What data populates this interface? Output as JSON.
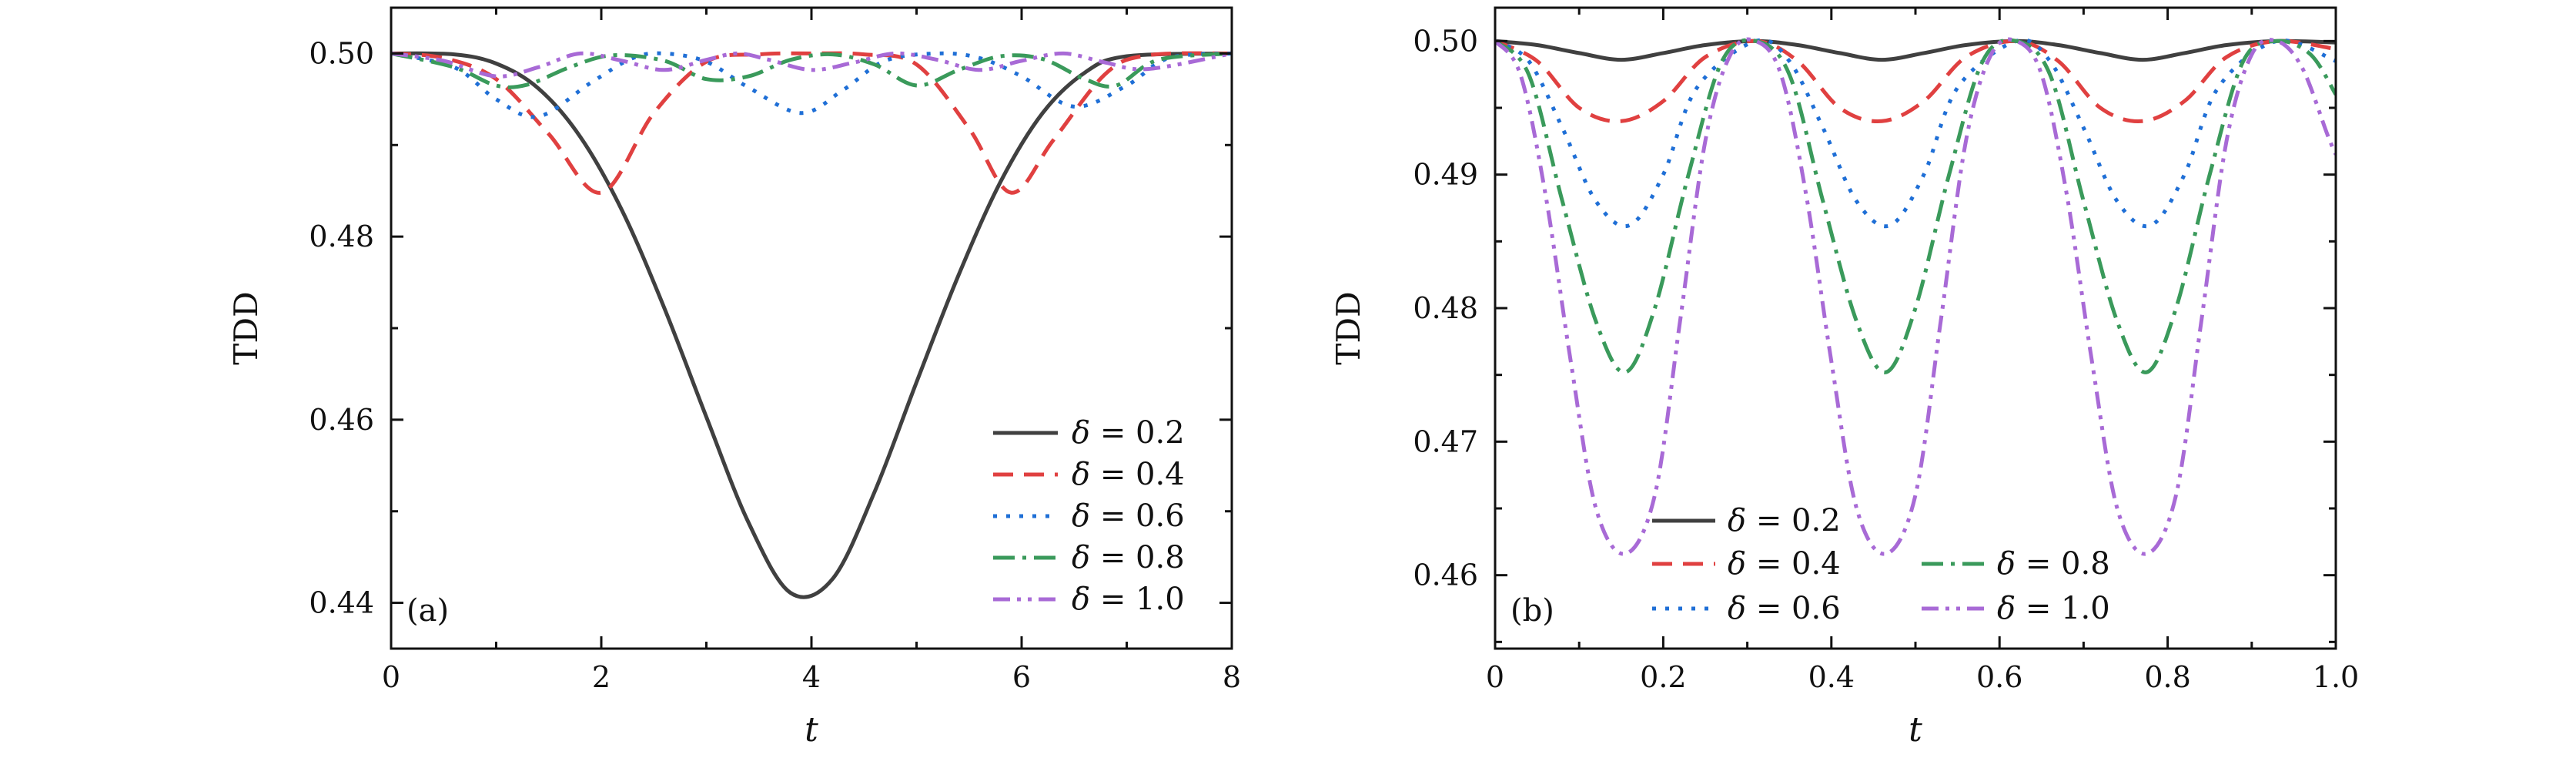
{
  "chart_data": [
    {
      "type": "line",
      "panel_label": "(a)",
      "xlabel": "t",
      "ylabel": "TDD",
      "xlim": [
        0,
        8
      ],
      "ylim": [
        0.435,
        0.505
      ],
      "x_ticks": [
        0,
        2,
        4,
        6,
        8
      ],
      "x_tick_labels": [
        "0",
        "2",
        "4",
        "6",
        "8"
      ],
      "y_ticks": [
        0.44,
        0.46,
        0.48,
        0.5
      ],
      "y_tick_labels": [
        "0.44",
        "0.46",
        "0.48",
        "0.50"
      ],
      "legend_position": "bottom-right",
      "legend_layout": "single-column",
      "series": [
        {
          "name": "δ = 0.2",
          "symbol": "δ",
          "value_text": "= 0.2",
          "color": "#404040",
          "dash": "solid",
          "x": [
            0,
            0.6,
            1.0,
            1.4,
            1.8,
            2.2,
            2.6,
            3.0,
            3.4,
            3.8,
            4.2,
            4.6,
            5.0,
            5.4,
            5.8,
            6.2,
            6.6,
            7.0,
            8.0
          ],
          "y": [
            0.5,
            0.4999,
            0.4989,
            0.4962,
            0.4909,
            0.4828,
            0.4722,
            0.4603,
            0.4488,
            0.4411,
            0.4426,
            0.4521,
            0.4641,
            0.4758,
            0.486,
            0.4935,
            0.4979,
            0.4997,
            0.5
          ]
        },
        {
          "name": "δ = 0.4",
          "symbol": "δ",
          "value_text": "= 0.4",
          "color": "#e04040",
          "dash": "long-dash",
          "x": [
            0,
            0.5,
            1.0,
            1.5,
            2.0,
            2.5,
            3.0,
            3.5,
            4.0,
            4.5,
            5.0,
            5.5,
            5.9,
            6.3,
            6.8,
            7.2,
            8.0
          ],
          "y": [
            0.5,
            0.4995,
            0.4972,
            0.4912,
            0.4848,
            0.4935,
            0.4991,
            0.4999,
            0.5,
            0.4999,
            0.4988,
            0.4918,
            0.4848,
            0.4905,
            0.4978,
            0.4998,
            0.5
          ]
        },
        {
          "name": "δ = 0.6",
          "symbol": "δ",
          "value_text": "= 0.6",
          "color": "#1f6fd6",
          "dash": "dotted",
          "x": [
            0,
            0.6,
            1.0,
            1.4,
            1.9,
            2.3,
            2.6,
            3.0,
            3.4,
            3.9,
            4.3,
            4.7,
            5.2,
            5.6,
            6.0,
            6.5,
            7.0,
            7.4,
            8.0
          ],
          "y": [
            0.5,
            0.4985,
            0.495,
            0.4931,
            0.4968,
            0.4995,
            0.5,
            0.4991,
            0.4963,
            0.4935,
            0.496,
            0.4992,
            0.5,
            0.4995,
            0.4975,
            0.4942,
            0.4965,
            0.4995,
            0.5
          ]
        },
        {
          "name": "δ = 0.8",
          "symbol": "δ",
          "value_text": "= 0.8",
          "color": "#3a9a5b",
          "dash": "dash-dot",
          "x": [
            0,
            0.6,
            1.0,
            1.3,
            1.7,
            2.1,
            2.6,
            3.0,
            3.4,
            3.8,
            4.2,
            4.6,
            5.0,
            5.4,
            5.8,
            6.2,
            6.6,
            6.9,
            7.3,
            8.0
          ],
          "y": [
            0.5,
            0.4985,
            0.4965,
            0.4966,
            0.4985,
            0.4998,
            0.4992,
            0.4972,
            0.4975,
            0.4993,
            0.4999,
            0.4988,
            0.4965,
            0.4982,
            0.4997,
            0.4994,
            0.4972,
            0.4965,
            0.4993,
            0.5
          ]
        },
        {
          "name": "δ = 1.0",
          "symbol": "δ",
          "value_text": "= 1.0",
          "color": "#a86ad6",
          "dash": "dash-dot-dot",
          "x": [
            0,
            0.5,
            1.0,
            1.4,
            1.8,
            2.2,
            2.6,
            3.0,
            3.3,
            3.6,
            4.0,
            4.4,
            4.8,
            5.2,
            5.6,
            6.0,
            6.4,
            6.8,
            7.2,
            8.0
          ],
          "y": [
            0.5,
            0.4992,
            0.4975,
            0.4985,
            0.5,
            0.4992,
            0.4982,
            0.4993,
            0.5,
            0.4993,
            0.4982,
            0.499,
            0.5,
            0.4993,
            0.4982,
            0.4992,
            0.5,
            0.499,
            0.4983,
            0.5
          ]
        }
      ]
    },
    {
      "type": "line",
      "panel_label": "(b)",
      "xlabel": "t",
      "ylabel": "TDD",
      "xlim": [
        0,
        1.0
      ],
      "ylim": [
        0.4545,
        0.5025
      ],
      "x_ticks": [
        0,
        0.2,
        0.4,
        0.6,
        0.8,
        1.0
      ],
      "x_tick_labels": [
        "0",
        "0.2",
        "0.4",
        "0.6",
        "0.8",
        "1.0"
      ],
      "y_ticks": [
        0.46,
        0.47,
        0.48,
        0.49,
        0.5
      ],
      "y_tick_labels": [
        "0.46",
        "0.47",
        "0.48",
        "0.49",
        "0.50"
      ],
      "legend_position": "bottom-left",
      "legend_layout": "two-column",
      "series": [
        {
          "name": "δ = 0.2",
          "symbol": "δ",
          "value_text": "= 0.2",
          "color": "#404040",
          "dash": "solid",
          "x": [
            0,
            0.05,
            0.1,
            0.15,
            0.2,
            0.25,
            0.31,
            0.36,
            0.41,
            0.46,
            0.51,
            0.56,
            0.62,
            0.67,
            0.72,
            0.77,
            0.82,
            0.87,
            0.93,
            1.0
          ],
          "y": [
            0.5,
            0.4997,
            0.4991,
            0.4986,
            0.4991,
            0.4997,
            0.5,
            0.4997,
            0.4991,
            0.4986,
            0.4991,
            0.4997,
            0.5,
            0.4997,
            0.4991,
            0.4986,
            0.4991,
            0.4997,
            0.5,
            0.4999
          ]
        },
        {
          "name": "δ = 0.4",
          "symbol": "δ",
          "value_text": "= 0.4",
          "color": "#e04040",
          "dash": "long-dash",
          "x": [
            0,
            0.05,
            0.1,
            0.15,
            0.2,
            0.25,
            0.31,
            0.36,
            0.41,
            0.46,
            0.51,
            0.56,
            0.62,
            0.67,
            0.72,
            0.77,
            0.82,
            0.87,
            0.93,
            1.0
          ],
          "y": [
            0.5,
            0.4985,
            0.495,
            0.494,
            0.4955,
            0.4988,
            0.5,
            0.4985,
            0.495,
            0.494,
            0.4955,
            0.4988,
            0.5,
            0.4985,
            0.495,
            0.494,
            0.4955,
            0.4988,
            0.5,
            0.4994
          ]
        },
        {
          "name": "δ = 0.6",
          "symbol": "δ",
          "value_text": "= 0.6",
          "color": "#1f6fd6",
          "dash": "dotted",
          "x": [
            0,
            0.04,
            0.08,
            0.12,
            0.16,
            0.2,
            0.24,
            0.31,
            0.35,
            0.39,
            0.43,
            0.47,
            0.51,
            0.55,
            0.62,
            0.66,
            0.7,
            0.74,
            0.78,
            0.82,
            0.86,
            0.93,
            1.0
          ],
          "y": [
            0.5,
            0.4985,
            0.4935,
            0.488,
            0.4862,
            0.49,
            0.4965,
            0.5,
            0.4985,
            0.4935,
            0.488,
            0.4862,
            0.49,
            0.4965,
            0.5,
            0.4985,
            0.4935,
            0.488,
            0.4862,
            0.49,
            0.4965,
            0.5,
            0.4985
          ]
        },
        {
          "name": "δ = 0.8",
          "symbol": "δ",
          "value_text": "= 0.8",
          "color": "#3a9a5b",
          "dash": "dash-dot",
          "x": [
            0,
            0.04,
            0.08,
            0.12,
            0.155,
            0.19,
            0.23,
            0.27,
            0.31,
            0.35,
            0.39,
            0.43,
            0.465,
            0.5,
            0.54,
            0.58,
            0.62,
            0.66,
            0.7,
            0.74,
            0.775,
            0.81,
            0.85,
            0.89,
            0.93,
            0.97,
            1.0
          ],
          "y": [
            0.5,
            0.4975,
            0.488,
            0.479,
            0.4752,
            0.48,
            0.49,
            0.4985,
            0.5,
            0.4975,
            0.488,
            0.479,
            0.4752,
            0.48,
            0.49,
            0.4985,
            0.5,
            0.4975,
            0.488,
            0.479,
            0.4752,
            0.48,
            0.49,
            0.4985,
            0.5,
            0.499,
            0.496
          ]
        },
        {
          "name": "δ = 1.0",
          "symbol": "δ",
          "value_text": "= 1.0",
          "color": "#a86ad6",
          "dash": "dash-dot-dot",
          "x": [
            0,
            0.03,
            0.06,
            0.09,
            0.12,
            0.155,
            0.19,
            0.22,
            0.25,
            0.28,
            0.31,
            0.34,
            0.37,
            0.4,
            0.43,
            0.465,
            0.5,
            0.53,
            0.56,
            0.59,
            0.62,
            0.65,
            0.68,
            0.71,
            0.74,
            0.775,
            0.81,
            0.84,
            0.87,
            0.9,
            0.93,
            0.96,
            0.99,
            1.0
          ],
          "y": [
            0.5,
            0.4975,
            0.4885,
            0.476,
            0.465,
            0.4616,
            0.466,
            0.479,
            0.4925,
            0.499,
            0.5,
            0.4975,
            0.4885,
            0.476,
            0.465,
            0.4616,
            0.466,
            0.479,
            0.4925,
            0.499,
            0.5,
            0.4975,
            0.4885,
            0.476,
            0.465,
            0.4616,
            0.466,
            0.479,
            0.4925,
            0.499,
            0.5,
            0.498,
            0.493,
            0.4915
          ]
        }
      ]
    }
  ]
}
